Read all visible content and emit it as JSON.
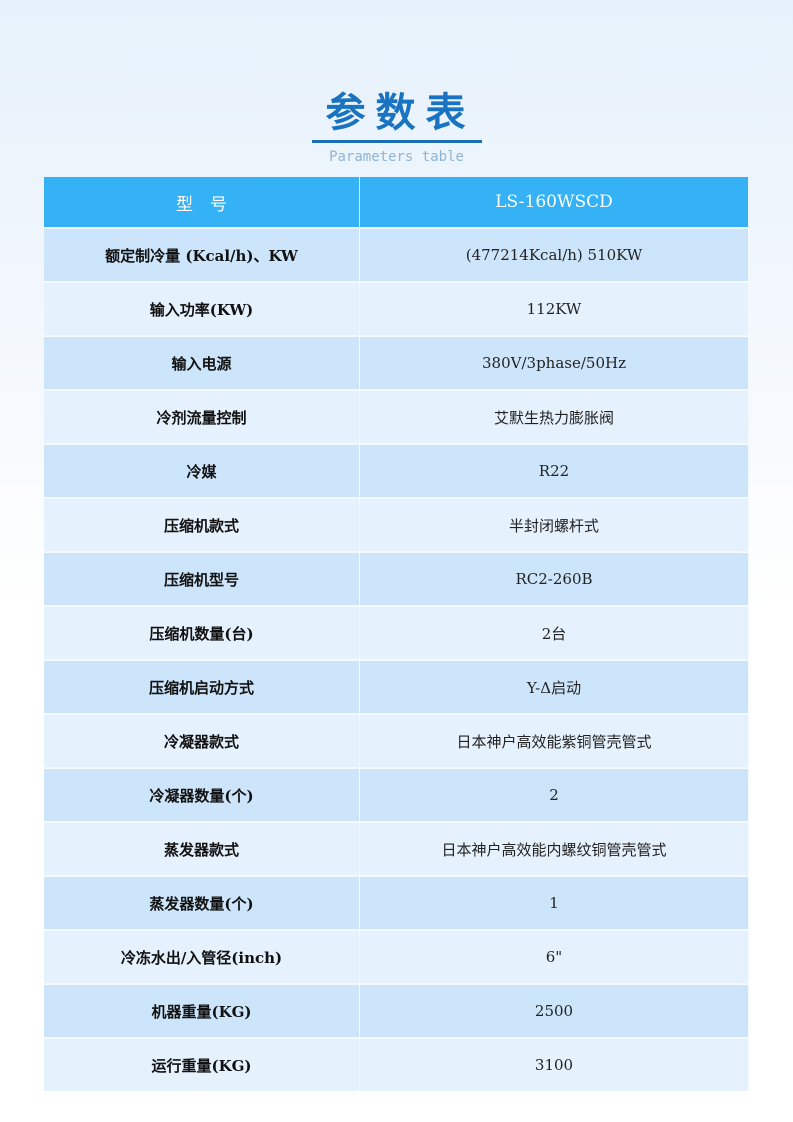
{
  "title": "参数表",
  "subtitle": "Parameters table",
  "header": {
    "key": "型　号",
    "value": "LS-160WSCD"
  },
  "rows": [
    {
      "k": "额定制冷量 (Kcal/h)、KW",
      "v": "(477214Kcal/h)  510KW"
    },
    {
      "k": "输入功率(KW)",
      "v": "112KW"
    },
    {
      "k": "输入电源",
      "v": "380V/3phase/50Hz"
    },
    {
      "k": "冷剂流量控制",
      "v": "艾默生热力膨胀阀"
    },
    {
      "k": "冷媒",
      "v": "R22"
    },
    {
      "k": "压缩机款式",
      "v": "半封闭螺杆式"
    },
    {
      "k": "压缩机型号",
      "v": "RC2-260B"
    },
    {
      "k": "压缩机数量(台)",
      "v": "2台"
    },
    {
      "k": "压缩机启动方式",
      "v": "Y-Δ启动"
    },
    {
      "k": "冷凝器款式",
      "v": "日本神户高效能紫铜管壳管式"
    },
    {
      "k": "冷凝器数量(个)",
      "v": "2"
    },
    {
      "k": "蒸发器款式",
      "v": "日本神户高效能内螺纹铜管壳管式"
    },
    {
      "k": "蒸发器数量(个)",
      "v": "1"
    },
    {
      "k": "冷冻水出/入管径(inch)",
      "v": "6\""
    },
    {
      "k": "机器重量(KG)",
      "v": "2500"
    },
    {
      "k": "运行重量(KG)",
      "v": "3100"
    }
  ]
}
